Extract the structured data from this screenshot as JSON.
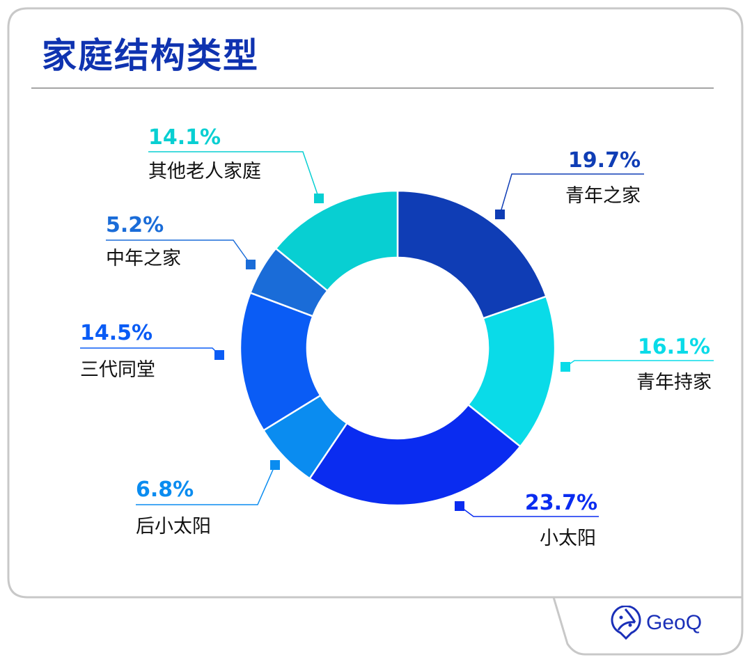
{
  "chart_data": {
    "type": "pie",
    "donut": true,
    "title": "家庭结构类型",
    "categories": [
      "青年之家",
      "青年持家",
      "小太阳",
      "后小太阳",
      "三代同堂",
      "中年之家",
      "其他老人家庭"
    ],
    "values": [
      19.7,
      16.1,
      23.7,
      6.8,
      14.5,
      5.2,
      14.1
    ],
    "labels": [
      "19.7%",
      "16.1%",
      "23.7%",
      "6.8%",
      "14.5%",
      "5.2%",
      "14.1%"
    ],
    "colors": [
      "#0f3db5",
      "#0adbe8",
      "#0a2cf0",
      "#0a8cf0",
      "#0a5cf5",
      "#1a6cd8",
      "#08cfd2"
    ],
    "legend": "callout labels"
  },
  "brand": {
    "name": "GeoQ",
    "color": "#1a2fb8"
  }
}
